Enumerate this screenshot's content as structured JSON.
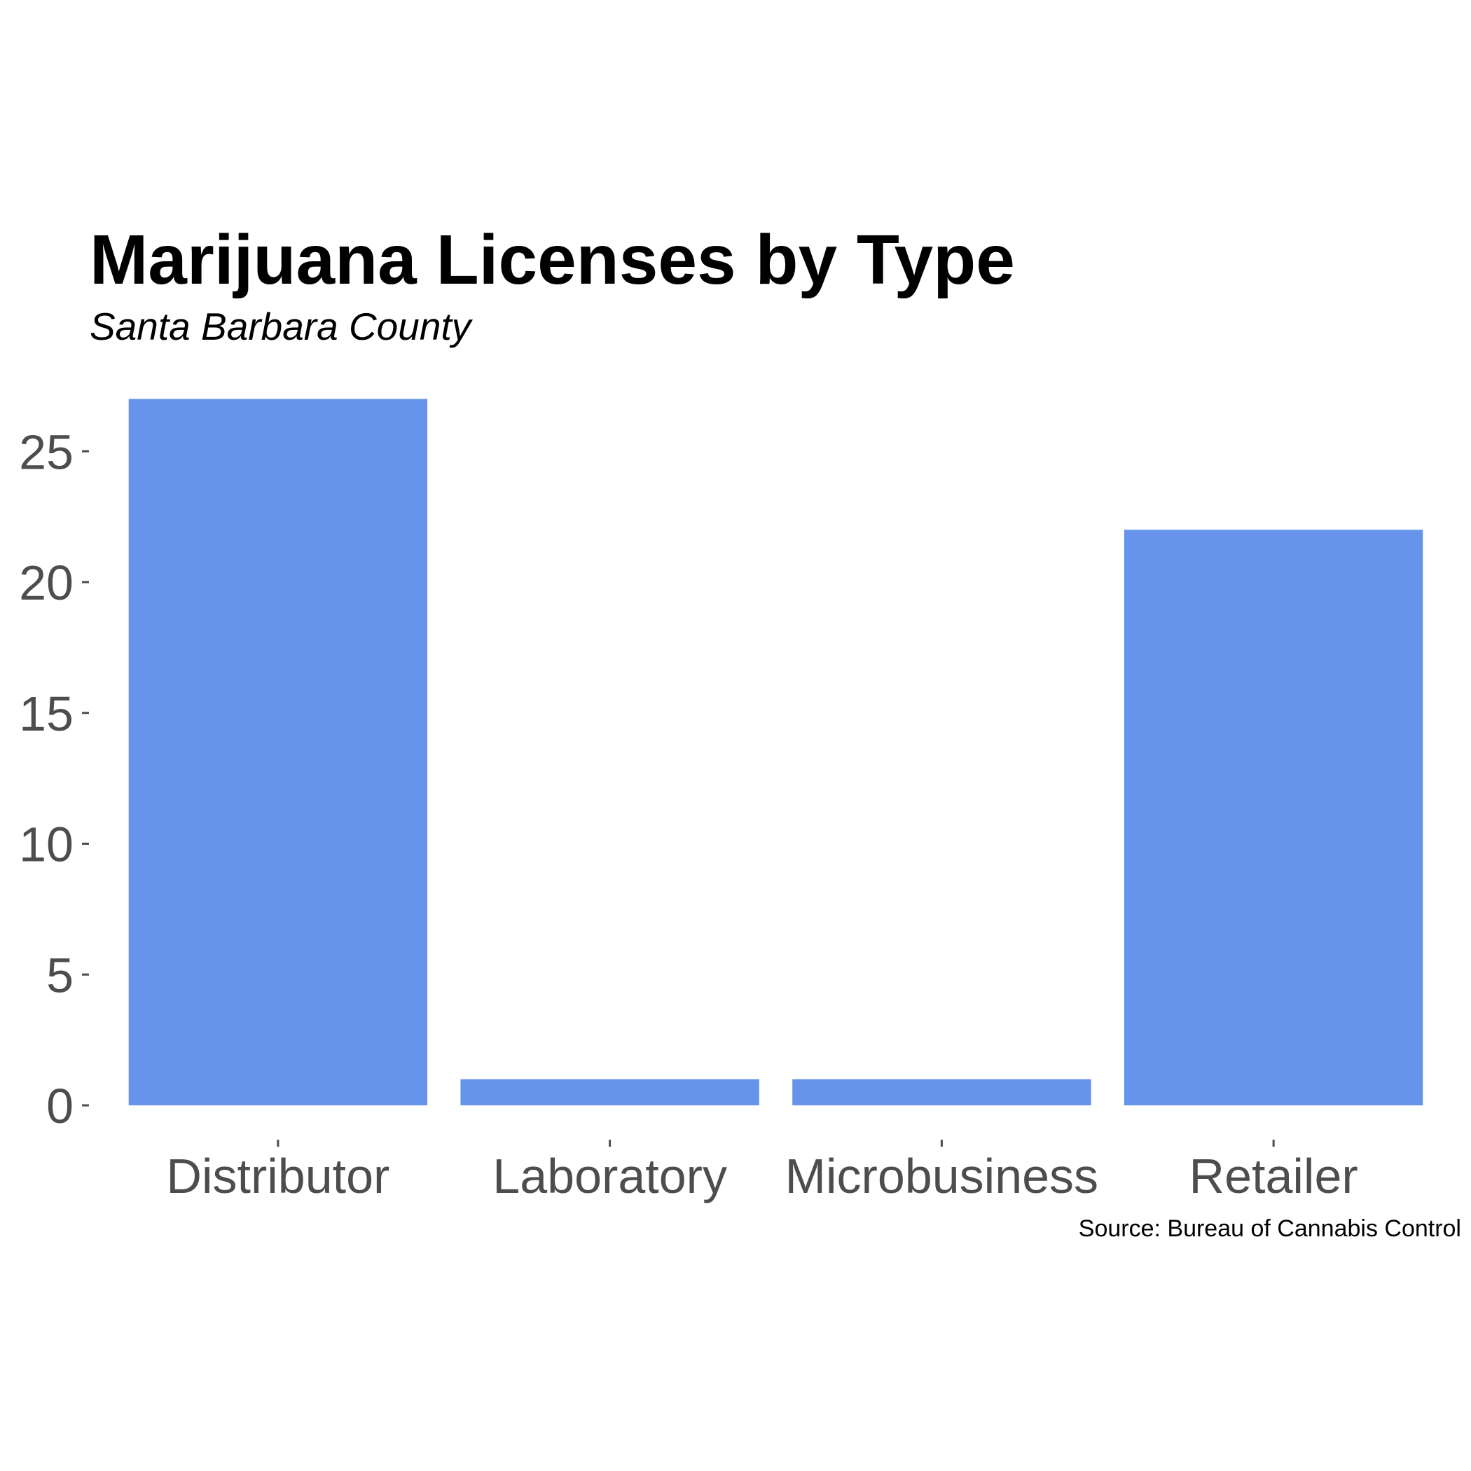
{
  "chart_data": {
    "type": "bar",
    "title": "Marijuana Licenses by Type",
    "subtitle": "Santa Barbara County",
    "caption": "Source: Bureau of Cannabis Control",
    "categories": [
      "Distributor",
      "Laboratory",
      "Microbusiness",
      "Retailer"
    ],
    "values": [
      27,
      1,
      1,
      22
    ],
    "xlabel": "",
    "ylabel": "",
    "ylim": [
      0,
      27
    ],
    "yticks": [
      "0",
      "5",
      "10",
      "15",
      "20",
      "25"
    ],
    "grid": false,
    "legend": "none",
    "colors": {
      "bar": "#6694ea",
      "tick_text": "#4d4d4d"
    }
  }
}
